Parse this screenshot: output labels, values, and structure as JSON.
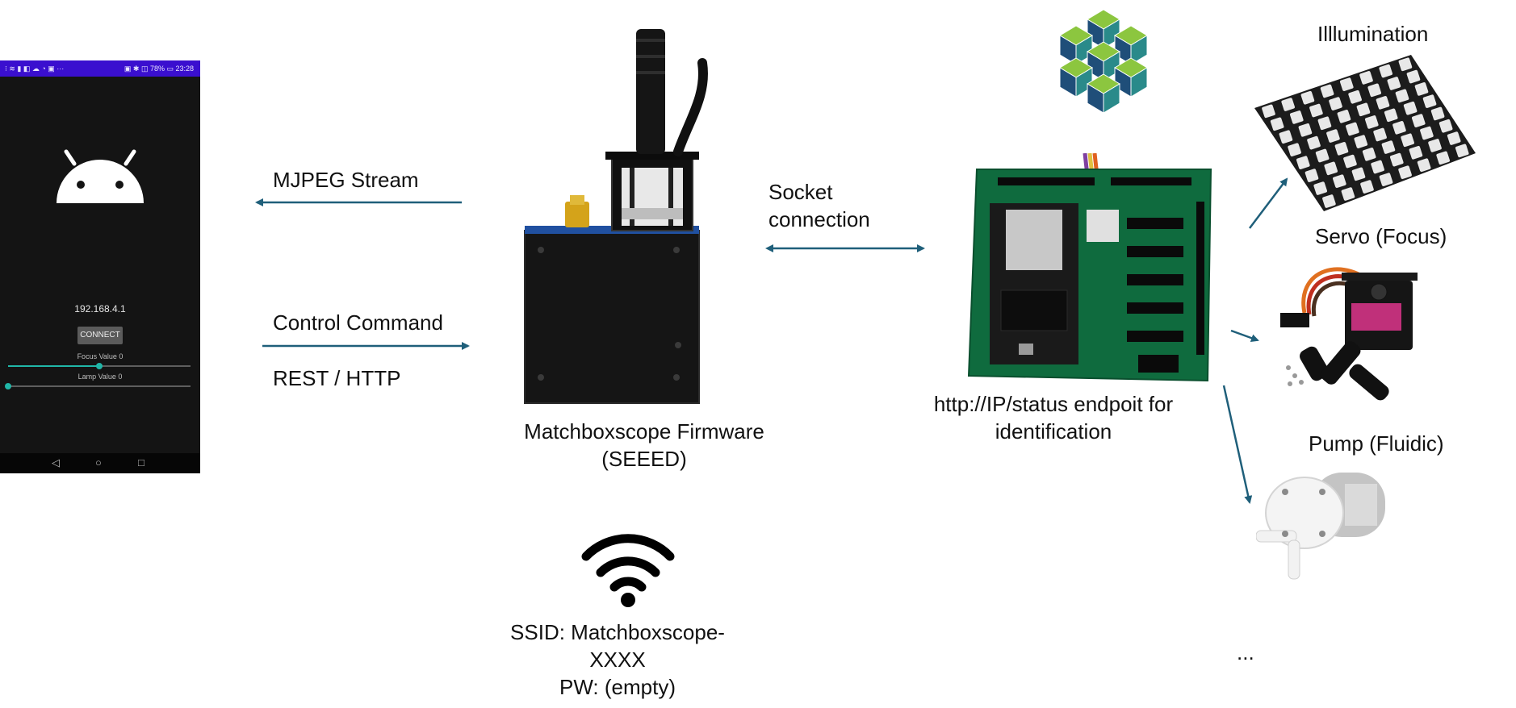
{
  "phone": {
    "status_left": "⁝ ≋ ▮ ◧ ☁ ◔ ▣ ···",
    "status_right": "▣ ✱ ◫ 78% ▭ 23:28",
    "ip": "192.168.4.1",
    "connect_label": "CONNECT",
    "focus_label": "Focus Value 0",
    "lamp_label": "Lamp Value 0",
    "focus_fraction": 0.5,
    "lamp_fraction": 0.0,
    "nav_back": "◁",
    "nav_home": "○",
    "nav_recent": "□",
    "accent": "#20b7a8",
    "statusbar_color": "#3a0fcf",
    "logo_color": "#ffffff"
  },
  "labels": {
    "mjpeg": "MJPEG Stream",
    "control": "Control Command",
    "rest": "REST / HTTP",
    "socket_line1": "Socket",
    "socket_line2": "connection",
    "firmware_line1": "Matchboxscope Firmware",
    "firmware_line2": "(SEEED)",
    "status_line1": "http://IP/status endpoit for",
    "status_line2": "identification",
    "ssid_line1": "SSID: Matchboxscope-",
    "ssid_line2": "XXXX",
    "ssid_line3": "PW: (empty)",
    "illumination": "Illlumination",
    "servo": "Servo (Focus)",
    "pump": "Pump (Fluidic)",
    "more": "..."
  },
  "icons": {
    "android": "android-logo-icon",
    "wifi": "wifi-icon",
    "uc2": "uc2-cube-logo-icon"
  },
  "colors": {
    "arrow": "#1f5f7a",
    "uc2_green": "#8cc63f",
    "uc2_blue": "#1f4e79",
    "uc2_teal": "#2a8a8a",
    "pcb": "#0f6b3e"
  }
}
